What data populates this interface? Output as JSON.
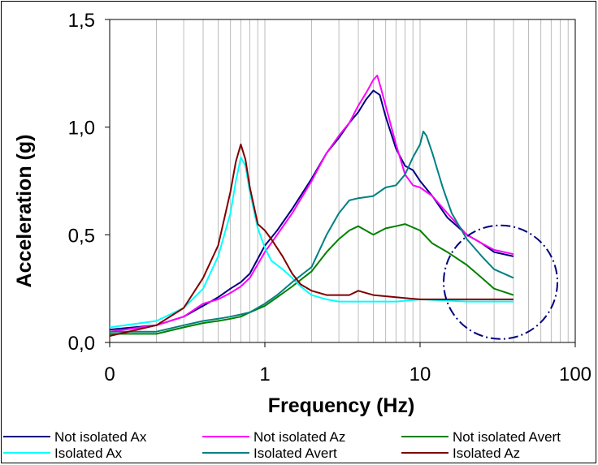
{
  "chart_data": {
    "type": "line",
    "title": "",
    "xlabel": "Frequency (Hz)",
    "ylabel": "Acceleration (g)",
    "x_scale": "log",
    "x_tick_labels": [
      "0",
      "1",
      "10",
      "100"
    ],
    "y_tick_labels": [
      "0,0",
      "0,5",
      "1,0",
      "1,5"
    ],
    "xlim": [
      0.1,
      100
    ],
    "ylim": [
      0,
      1.5
    ],
    "grid": "vertical",
    "legend_position": "bottom",
    "annotation": {
      "shape": "dash-dot circle",
      "center_hz": 33,
      "center_g": 0.28
    },
    "series": [
      {
        "name": "Not isolated Ax",
        "color": "#000080",
        "x": [
          0.1,
          0.2,
          0.3,
          0.4,
          0.5,
          0.6,
          0.7,
          0.8,
          1.0,
          1.2,
          1.5,
          2.0,
          2.5,
          3.0,
          3.5,
          4.0,
          4.5,
          5.0,
          5.5,
          6.0,
          7.0,
          8.0,
          9.0,
          10,
          12,
          15,
          20,
          25,
          30,
          40
        ],
        "y": [
          0.06,
          0.08,
          0.12,
          0.17,
          0.21,
          0.25,
          0.28,
          0.32,
          0.45,
          0.52,
          0.62,
          0.76,
          0.88,
          0.95,
          1.02,
          1.07,
          1.13,
          1.17,
          1.15,
          1.05,
          0.9,
          0.82,
          0.8,
          0.75,
          0.68,
          0.58,
          0.5,
          0.46,
          0.42,
          0.4
        ]
      },
      {
        "name": "Not isolated Az",
        "color": "#ff00ff",
        "x": [
          0.1,
          0.2,
          0.3,
          0.4,
          0.5,
          0.6,
          0.7,
          0.8,
          1.0,
          1.2,
          1.5,
          2.0,
          2.5,
          3.0,
          3.5,
          4.0,
          4.5,
          5.0,
          5.3,
          5.6,
          6.0,
          7.0,
          8.0,
          9.0,
          10,
          12,
          15,
          20,
          25,
          30,
          40
        ],
        "y": [
          0.05,
          0.08,
          0.12,
          0.18,
          0.2,
          0.23,
          0.26,
          0.3,
          0.42,
          0.5,
          0.6,
          0.75,
          0.88,
          0.96,
          1.02,
          1.1,
          1.16,
          1.22,
          1.24,
          1.18,
          1.1,
          0.92,
          0.78,
          0.73,
          0.72,
          0.68,
          0.6,
          0.5,
          0.46,
          0.43,
          0.41
        ]
      },
      {
        "name": "Not isolated Avert",
        "color": "#008000",
        "x": [
          0.1,
          0.2,
          0.3,
          0.4,
          0.5,
          0.6,
          0.7,
          0.8,
          1.0,
          1.2,
          1.5,
          2.0,
          2.5,
          3.0,
          3.5,
          4.0,
          5.0,
          6.0,
          7.0,
          8.0,
          10,
          12,
          15,
          20,
          25,
          30,
          40
        ],
        "y": [
          0.04,
          0.04,
          0.07,
          0.09,
          0.1,
          0.11,
          0.12,
          0.14,
          0.17,
          0.21,
          0.26,
          0.33,
          0.42,
          0.48,
          0.52,
          0.54,
          0.5,
          0.53,
          0.54,
          0.55,
          0.52,
          0.46,
          0.42,
          0.36,
          0.3,
          0.25,
          0.22
        ]
      },
      {
        "name": "Isolated Ax",
        "color": "#00ffff",
        "x": [
          0.1,
          0.2,
          0.3,
          0.4,
          0.5,
          0.6,
          0.65,
          0.7,
          0.75,
          0.8,
          0.9,
          1.0,
          1.1,
          1.3,
          1.5,
          1.7,
          2.0,
          2.5,
          3.0,
          4.0,
          5.0,
          7.0,
          10,
          20,
          40
        ],
        "y": [
          0.07,
          0.1,
          0.16,
          0.25,
          0.4,
          0.6,
          0.75,
          0.86,
          0.82,
          0.7,
          0.53,
          0.44,
          0.38,
          0.34,
          0.3,
          0.26,
          0.22,
          0.2,
          0.19,
          0.19,
          0.19,
          0.19,
          0.2,
          0.19,
          0.19
        ]
      },
      {
        "name": "Isolated Avert",
        "color": "#008080",
        "x": [
          0.1,
          0.2,
          0.3,
          0.4,
          0.5,
          0.6,
          0.7,
          0.8,
          1.0,
          1.2,
          1.5,
          2.0,
          2.5,
          3.0,
          3.5,
          4.0,
          5.0,
          6.0,
          7.0,
          8.0,
          9.0,
          10,
          10.5,
          11,
          12,
          14,
          16,
          20,
          25,
          30,
          40
        ],
        "y": [
          0.05,
          0.05,
          0.08,
          0.1,
          0.11,
          0.12,
          0.13,
          0.14,
          0.18,
          0.22,
          0.28,
          0.35,
          0.5,
          0.6,
          0.66,
          0.67,
          0.68,
          0.72,
          0.73,
          0.78,
          0.86,
          0.92,
          0.98,
          0.96,
          0.88,
          0.72,
          0.6,
          0.48,
          0.4,
          0.34,
          0.3
        ]
      },
      {
        "name": "Isolated Az",
        "color": "#800000",
        "x": [
          0.1,
          0.2,
          0.3,
          0.4,
          0.5,
          0.6,
          0.65,
          0.7,
          0.75,
          0.8,
          0.9,
          1.0,
          1.1,
          1.3,
          1.5,
          1.7,
          2.0,
          2.5,
          3.0,
          3.5,
          4.0,
          5.0,
          7.0,
          10,
          20,
          40
        ],
        "y": [
          0.03,
          0.08,
          0.16,
          0.3,
          0.45,
          0.7,
          0.84,
          0.92,
          0.85,
          0.72,
          0.55,
          0.52,
          0.48,
          0.4,
          0.32,
          0.27,
          0.24,
          0.22,
          0.22,
          0.22,
          0.24,
          0.22,
          0.21,
          0.2,
          0.2,
          0.2
        ]
      }
    ]
  }
}
